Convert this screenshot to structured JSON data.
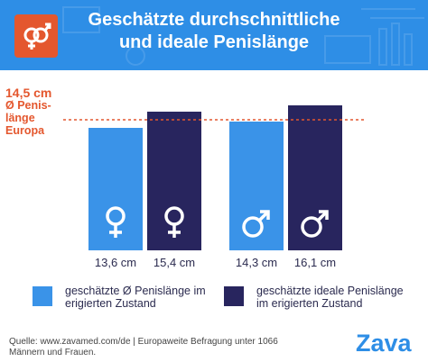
{
  "header": {
    "title_line1": "Geschätzte durchschnittliche",
    "title_line2": "und ideale Penislänge",
    "bg_color": "#2e8ee6",
    "badge_color": "#e4572e",
    "badge_icon": "gender-symbols-icon"
  },
  "reference": {
    "value_label": "14,5 cm",
    "line1": "Ø Penis-",
    "line2": "länge",
    "line3": "Europa",
    "color": "#e4572e"
  },
  "chart_data": {
    "type": "bar",
    "categories": [
      "Frauen geschätzt",
      "Frauen ideal",
      "Männer geschätzt",
      "Männer ideal"
    ],
    "values": [
      13.6,
      15.4,
      14.3,
      16.1
    ],
    "value_labels": [
      "13,6 cm",
      "15,4 cm",
      "14,3 cm",
      "16,1 cm"
    ],
    "unit": "cm",
    "groups": [
      "female",
      "female",
      "male",
      "male"
    ],
    "bar_colors": [
      "#3a93e8",
      "#28255e",
      "#3a93e8",
      "#28255e"
    ],
    "reference_line": {
      "value": 14.5,
      "style": "dashed",
      "color": "#e4572e"
    },
    "ylim": [
      0,
      17
    ],
    "legend_placement": "bottom"
  },
  "legend": {
    "estimated": {
      "line1": "geschätzte Ø Penislänge im",
      "line2": "erigierten Zustand",
      "color": "#3a93e8"
    },
    "ideal": {
      "line1": "geschätzte ideale Penislänge",
      "line2": "im erigierten Zustand",
      "color": "#28255e"
    }
  },
  "footer": {
    "source_line1": "Quelle: www.zavamed.com/de | Europaweite Befragung unter 1066",
    "source_line2": "Männern und Frauen.",
    "logo": "Zava"
  }
}
